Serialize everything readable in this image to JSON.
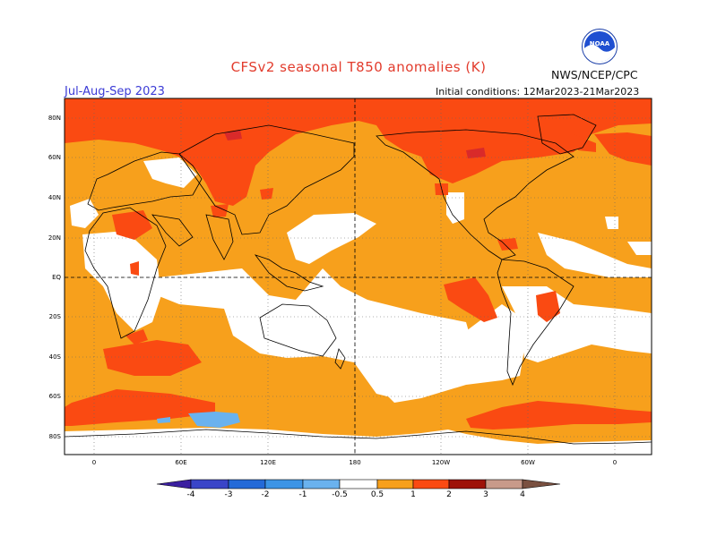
{
  "header": {
    "title": "CFSv2 seasonal T850 anomalies (K)",
    "season": "Jul-Aug-Sep 2023",
    "organization": "NWS/NCEP/CPC",
    "initial_conditions": "Initial conditions: 12Mar2023-21Mar2023"
  },
  "logo": {
    "icon": "noaa-logo-icon",
    "text": "NOAA"
  },
  "map": {
    "latitude_labels": [
      "80N",
      "60N",
      "40N",
      "20N",
      "EQ",
      "20S",
      "40S",
      "60S",
      "80S"
    ],
    "longitude_labels": [
      "0",
      "60E",
      "120E",
      "180",
      "120W",
      "60W",
      "0"
    ],
    "colors": {
      "zero_anomaly": "#ffffff",
      "pos_05_1": "#f7a01c",
      "pos_1_2": "#fa4a12",
      "pos_2_3": "#d92a2a",
      "neg_1_05": "#6ab2ee",
      "land_outline": "#000000",
      "grid": "#666666"
    }
  },
  "colorbar": {
    "labels": [
      "-4",
      "-3",
      "-2",
      "-1",
      "-0.5",
      "0.5",
      "1",
      "2",
      "3",
      "4"
    ],
    "colors": [
      "#3b1fa0",
      "#3a45c8",
      "#246ad8",
      "#3c94e6",
      "#6ab2ee",
      "#ffffff",
      "#f7a01c",
      "#fa4a12",
      "#9e1208",
      "#c89a8a",
      "#7a5040"
    ]
  }
}
